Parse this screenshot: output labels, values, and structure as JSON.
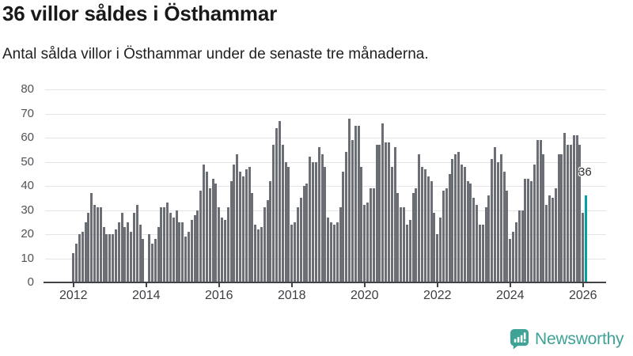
{
  "header": {
    "title": "36 villor såldes i Östhammar",
    "subtitle": "Antal sålda villor i Östhammar under de senaste tre månaderna."
  },
  "chart_data": {
    "type": "bar",
    "title": "36 villor såldes i Östhammar",
    "xlabel": "",
    "ylabel": "Antal sålda villor",
    "frequency": "monthly",
    "x_start": "2012-01",
    "x_end": "2026-02",
    "ylim": [
      0,
      80
    ],
    "y_ticks": [
      0,
      10,
      20,
      30,
      40,
      50,
      60,
      70,
      80
    ],
    "x_tick_labels": [
      "2012",
      "2014",
      "2016",
      "2018",
      "2020",
      "2022",
      "2024",
      "2026"
    ],
    "grid": true,
    "legend": false,
    "annotation": "36",
    "highlight_last": true,
    "highlight_value": 36,
    "values": [
      12,
      16,
      20,
      21,
      25,
      29,
      37,
      32,
      31,
      31,
      23,
      20,
      20,
      20,
      22,
      25,
      29,
      23,
      25,
      21,
      29,
      32,
      24,
      18,
      0,
      20,
      16,
      18,
      23,
      31,
      31,
      33,
      29,
      27,
      30,
      25,
      25,
      19,
      21,
      26,
      28,
      30,
      38,
      49,
      46,
      39,
      43,
      41,
      31,
      27,
      26,
      31,
      42,
      49,
      53,
      46,
      44,
      47,
      48,
      37,
      24,
      22,
      23,
      31,
      34,
      42,
      57,
      64,
      67,
      57,
      50,
      48,
      24,
      25,
      31,
      35,
      40,
      41,
      52,
      50,
      50,
      56,
      53,
      48,
      27,
      25,
      24,
      25,
      31,
      46,
      54,
      68,
      59,
      65,
      65,
      48,
      32,
      33,
      39,
      39,
      57,
      57,
      66,
      58,
      58,
      48,
      56,
      37,
      31,
      31,
      24,
      26,
      37,
      39,
      53,
      48,
      47,
      44,
      42,
      29,
      20,
      27,
      38,
      39,
      45,
      51,
      53,
      54,
      49,
      48,
      42,
      41,
      35,
      32,
      24,
      24,
      31,
      36,
      51,
      56,
      50,
      53,
      46,
      38,
      18,
      21,
      25,
      30,
      30,
      43,
      43,
      42,
      49,
      59,
      59,
      53,
      32,
      36,
      35,
      39,
      53,
      53,
      62,
      57,
      57,
      61,
      61,
      57,
      29,
      36
    ],
    "colors": {
      "bar": "#6b6e74",
      "highlight": "#00a2a2",
      "grid": "#e4e4e6",
      "axis": "#414348",
      "y_label": "#4f5257",
      "x_label": "#3c3e42",
      "annotation": "#2e2e2e"
    }
  },
  "footer": {
    "brand": "Newsworthy",
    "brand_color": "#3fa296",
    "logo_icon": "bar-chart-speech-bubble"
  }
}
